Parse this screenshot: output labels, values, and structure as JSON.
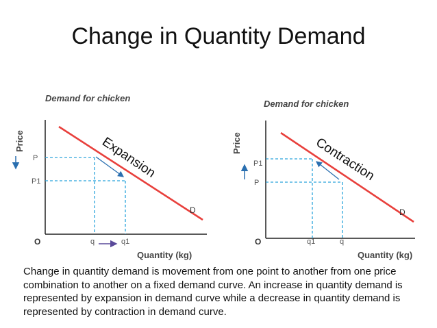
{
  "title": "Change in Quantity Demand",
  "left_chart": {
    "heading": "Demand for chicken",
    "y_axis_label": "Price",
    "x_axis_label": "Quantity (kg)",
    "origin": "O",
    "price_high": "P",
    "price_low": "P1",
    "qty_low": "q",
    "qty_high": "q1",
    "curve": "D",
    "movement": "Expansion"
  },
  "right_chart": {
    "heading": "Demand for chicken",
    "y_axis_label": "Price",
    "x_axis_label": "Quantity (kg)",
    "origin": "O",
    "price_high": "P1",
    "price_low": "P",
    "qty_low": "q1",
    "qty_high": "q",
    "curve": "D",
    "movement": "Contraction"
  },
  "caption": "Change in quantity demand is movement from one point to another from one price combination to another on a fixed demand curve. An increase in quantity demand is represented by expansion in demand curve while a decrease in quantity demand is represented by contraction in demand curve.",
  "colors": {
    "curve": "#e8403c",
    "guides": "#2aa3dc",
    "arrow": "#5a4a9a",
    "axis": "#222222"
  }
}
